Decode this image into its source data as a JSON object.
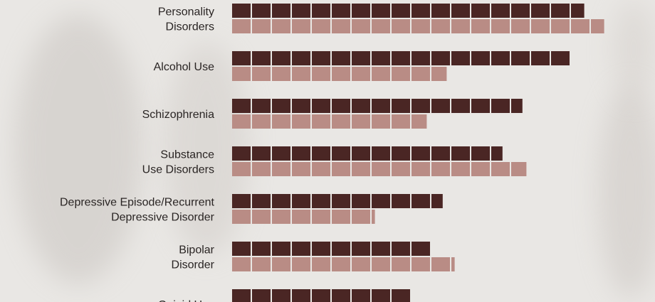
{
  "chart_data": {
    "type": "bar",
    "orientation": "horizontal",
    "unit_per_block": 1,
    "categories": [
      [
        "Personality",
        "Disorders"
      ],
      [
        "Alcohol Use"
      ],
      [
        "Schizophrenia"
      ],
      [
        "Substance",
        "Use Disorders"
      ],
      [
        "Depressive Episode/Recurrent",
        "Depressive Disorder"
      ],
      [
        "Bipolar",
        "Disorder"
      ],
      [
        "Opioid Use"
      ]
    ],
    "series": [
      {
        "color": "#4a2624",
        "values": [
          17.7,
          17,
          14.6,
          13.6,
          10.6,
          10,
          9
        ]
      },
      {
        "color": "#b98c85",
        "values": [
          18.7,
          10.8,
          9.8,
          14.8,
          7.2,
          11.2,
          null
        ]
      }
    ],
    "grid": false,
    "legend": "none"
  }
}
